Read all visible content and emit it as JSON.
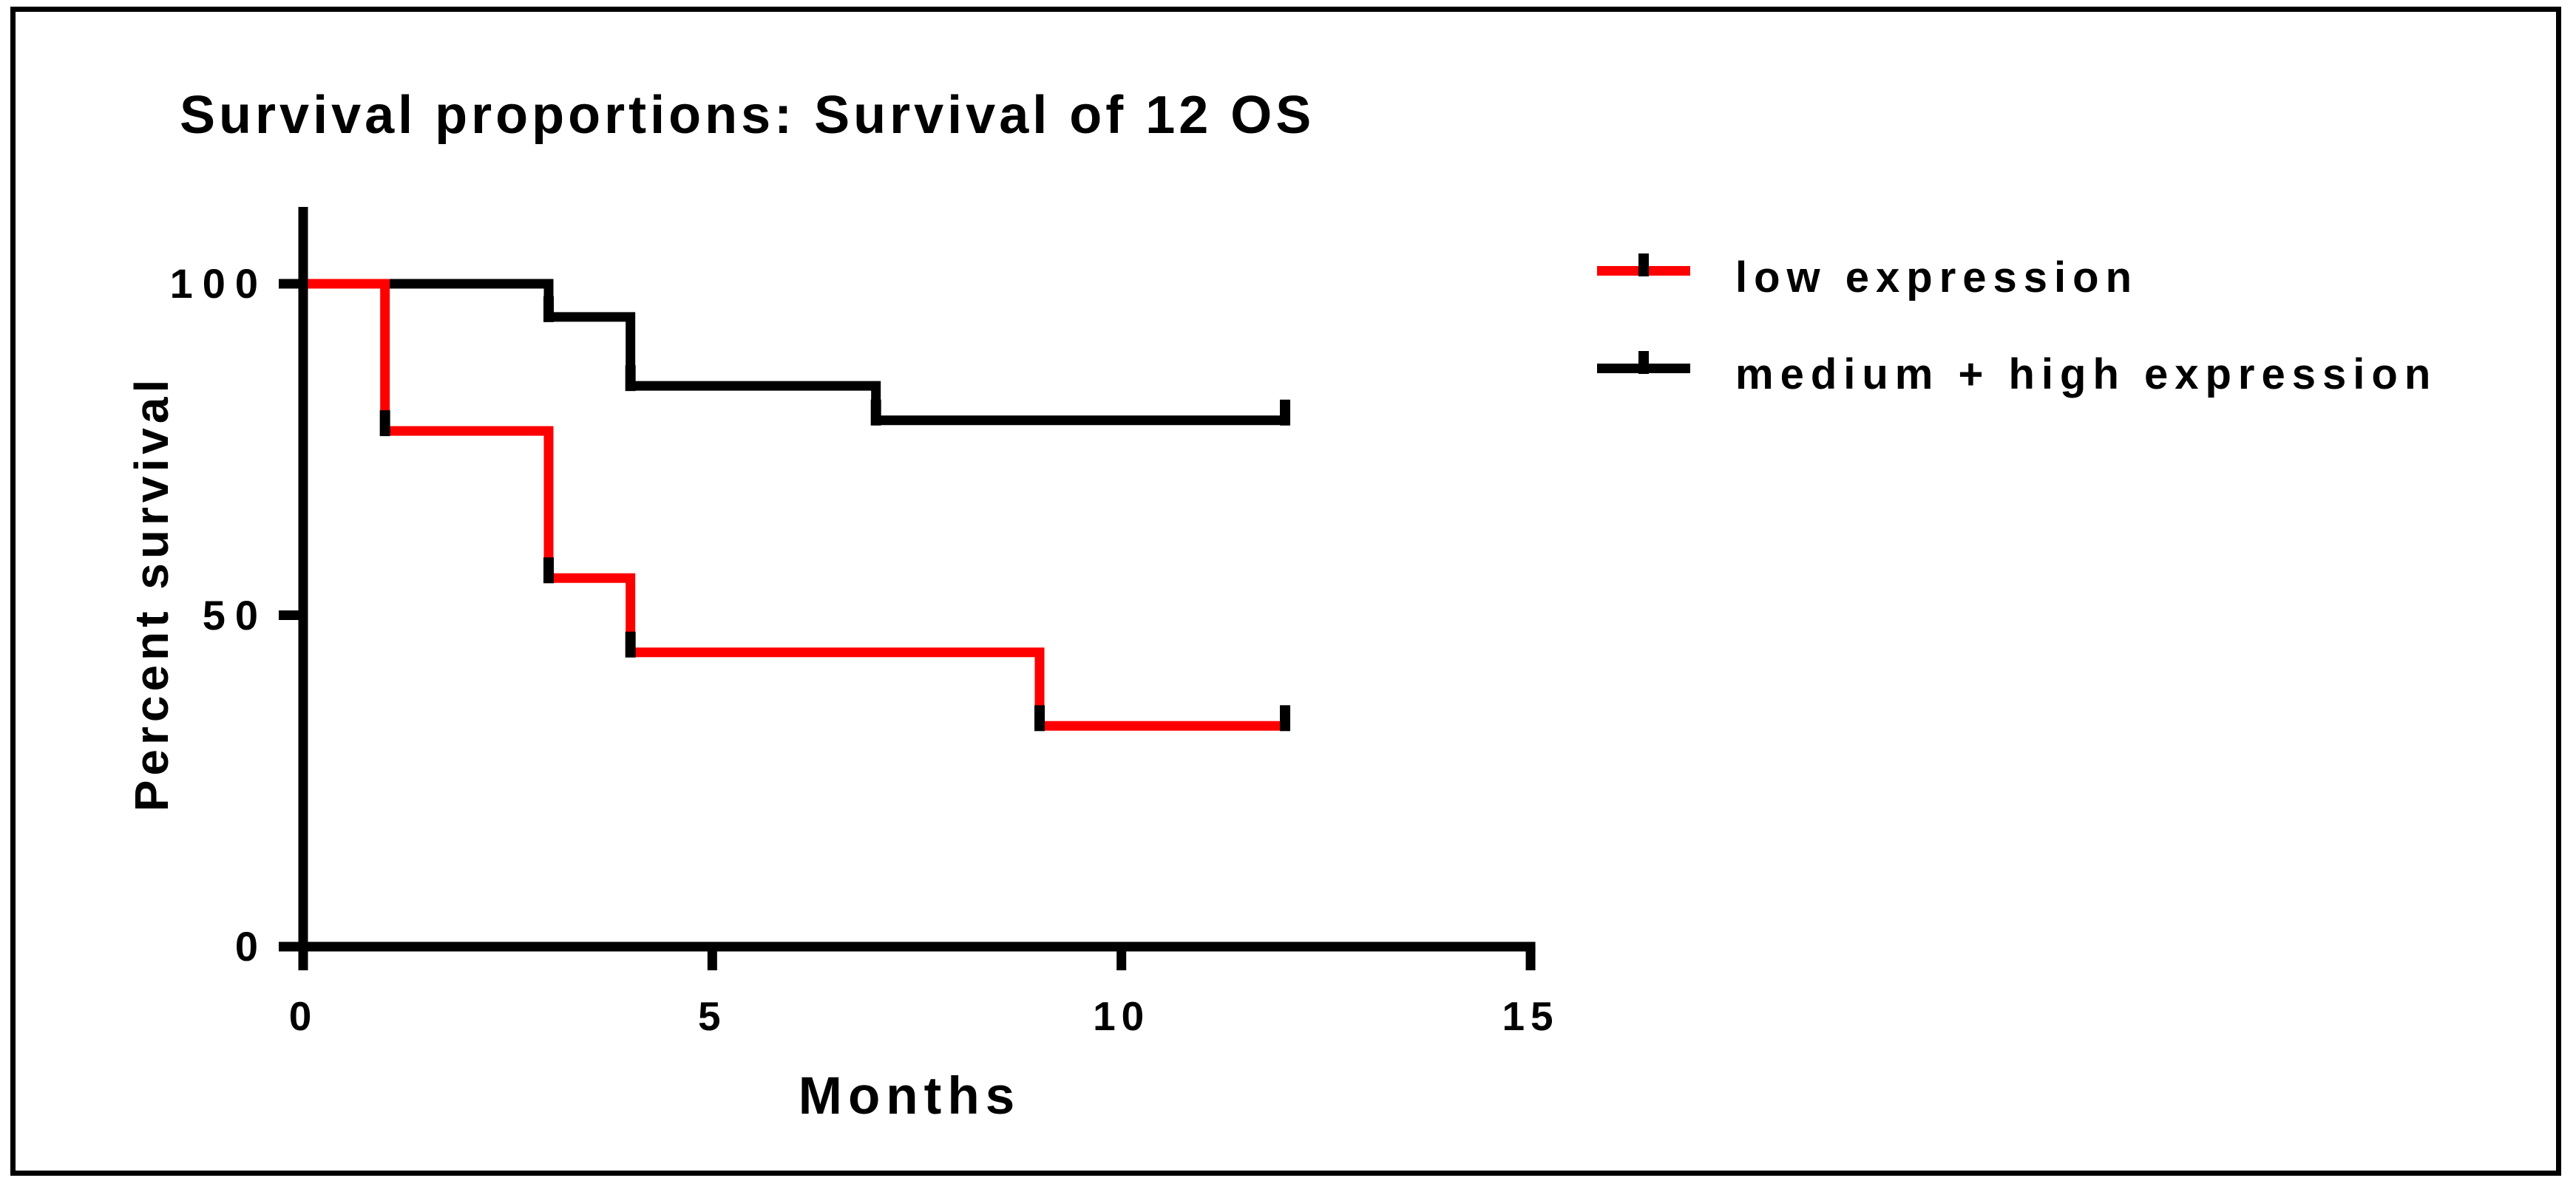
{
  "window": {
    "background": "#ffffff",
    "border_color": "#000000"
  },
  "chart_data": {
    "type": "line",
    "subtype": "kaplan-meier-step",
    "title": "Survival proportions: Survival of 12 OS",
    "xlabel": "Months",
    "ylabel": "Percent survival",
    "xlim": [
      0,
      15
    ],
    "ylim": [
      0,
      100
    ],
    "xticks": [
      0,
      5,
      10,
      15
    ],
    "yticks": [
      100,
      50,
      0
    ],
    "grid": false,
    "legend_position": "right",
    "axis_color": "#000000",
    "censor_tick_color": "#000000",
    "series": [
      {
        "name": "low expression",
        "color": "#fe0000",
        "steps": [
          [
            0,
            100
          ],
          [
            1,
            100
          ],
          [
            1,
            77.8
          ],
          [
            3,
            77.8
          ],
          [
            3,
            55.6
          ],
          [
            4,
            55.6
          ],
          [
            4,
            44.4
          ],
          [
            9,
            44.4
          ],
          [
            9,
            33.3
          ],
          [
            12,
            33.3
          ]
        ],
        "censor_marks": [
          [
            1,
            77.8
          ],
          [
            3,
            55.6
          ],
          [
            4,
            44.4
          ],
          [
            9,
            33.3
          ],
          [
            12,
            33.3
          ]
        ]
      },
      {
        "name": "medium + high expression",
        "color": "#000000",
        "steps": [
          [
            0,
            100
          ],
          [
            3,
            100
          ],
          [
            3,
            95
          ],
          [
            4,
            95
          ],
          [
            4,
            84.6
          ],
          [
            7,
            84.6
          ],
          [
            7,
            79.4
          ],
          [
            12,
            79.4
          ]
        ],
        "censor_marks": [
          [
            3,
            95
          ],
          [
            4,
            84.6
          ],
          [
            7,
            79.4
          ],
          [
            12,
            79.4
          ]
        ]
      }
    ]
  }
}
